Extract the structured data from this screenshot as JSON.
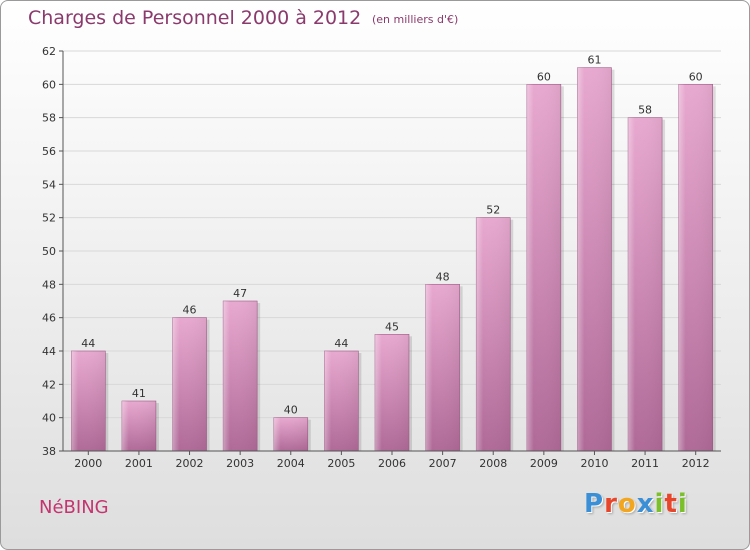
{
  "header": {
    "title": "Charges de Personnel 2000 à 2012",
    "subtitle": "(en milliers d'€)"
  },
  "footer": {
    "commune": "NéBING",
    "brand_letters": [
      "P",
      "r",
      "o",
      "x",
      "i",
      "t",
      "i"
    ],
    "brand_colors": [
      "#3a8fd6",
      "#e8462a",
      "#f2a51f",
      "#3a8fd6",
      "#7bbf2a",
      "#e8462a",
      "#7bbf2a"
    ]
  },
  "colors": {
    "bar_top": "#e8a9d0",
    "bar_bottom": "#b06a98",
    "bar_edge": "#a05a88",
    "grid": "#d8d8d8",
    "axis": "#555555"
  },
  "chart_data": {
    "type": "bar",
    "categories": [
      "2000",
      "2001",
      "2002",
      "2003",
      "2004",
      "2005",
      "2006",
      "2007",
      "2008",
      "2009",
      "2010",
      "2011",
      "2012"
    ],
    "values": [
      44,
      41,
      46,
      47,
      40,
      44,
      45,
      48,
      52,
      60,
      61,
      58,
      60
    ],
    "title": "Charges de Personnel 2000 à 2012",
    "ylim": [
      38,
      62
    ],
    "yticks": [
      38,
      40,
      42,
      44,
      46,
      48,
      50,
      52,
      54,
      56,
      58,
      60,
      62
    ],
    "grid": true,
    "data_labels": true
  }
}
